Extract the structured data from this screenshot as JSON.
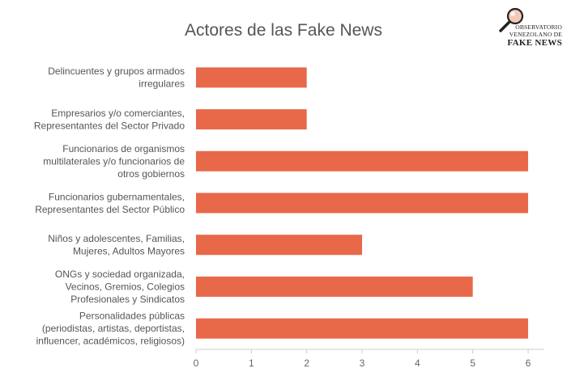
{
  "logo": {
    "line1": "OBSERVATORIO",
    "line2": "VENEZOLANO DE",
    "line3": "FAKE NEWS",
    "icon": "magnifying-glass-icon"
  },
  "chart_data": {
    "type": "bar",
    "orientation": "horizontal",
    "title": "Actores de las Fake News",
    "xlabel": "",
    "ylabel": "",
    "xlim": [
      0,
      6
    ],
    "x_ticks": [
      "0",
      "1",
      "2",
      "3",
      "4",
      "5",
      "6"
    ],
    "grid": false,
    "bar_color": "#E8684A",
    "categories": [
      [
        "Delincuentes y grupos armados",
        "irregulares"
      ],
      [
        "Empresarios y/o comerciantes,",
        "Representantes del Sector Privado"
      ],
      [
        "Funcionarios de organismos",
        "multilaterales y/o funcionarios de",
        "otros gobiernos"
      ],
      [
        "Funcionarios gubernamentales,",
        "Representantes del Sector Público"
      ],
      [
        "Niños y adolescentes, Familias,",
        "Mujeres, Adultos Mayores"
      ],
      [
        "ONGs y sociedad organizada,",
        "Vecinos, Gremios, Colegios",
        "Profesionales y Sindicatos"
      ],
      [
        "Personalidades públicas",
        "(periodistas, artistas, deportistas,",
        "influencer, académicos, religiosos)"
      ]
    ],
    "values": [
      2,
      2,
      6,
      6,
      3,
      5,
      6
    ]
  }
}
